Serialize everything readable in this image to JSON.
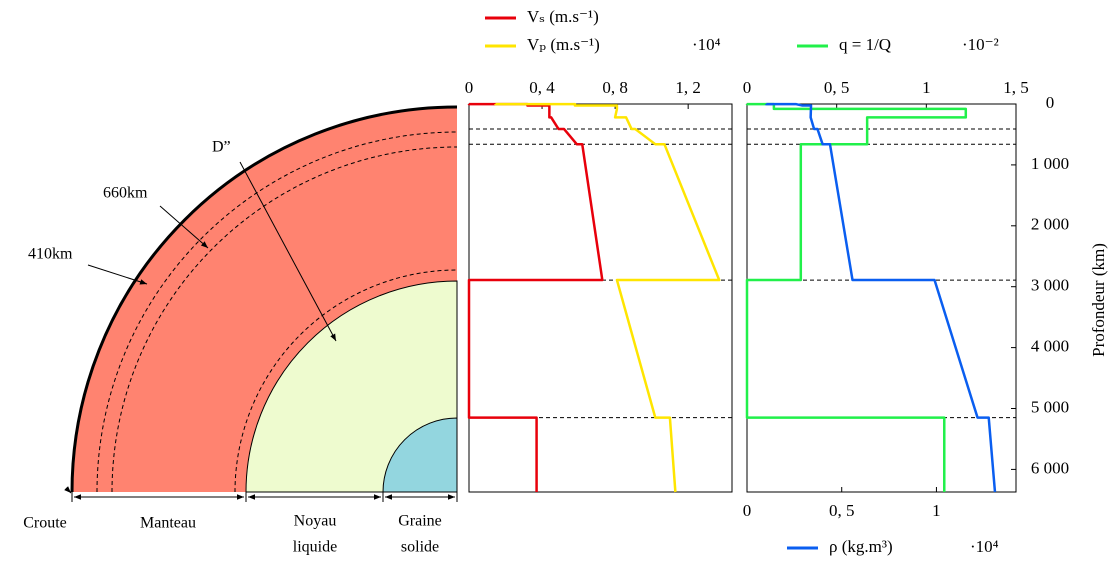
{
  "diagram": {
    "labels": {
      "d2": "D”",
      "d660": "660km",
      "d410": "410km",
      "crust": "Croute",
      "mantle": "Manteau",
      "outer_core": [
        "Noyau",
        "liquide"
      ],
      "inner_core": [
        "Graine",
        "solide"
      ]
    }
  },
  "discontinuities": [
    410,
    660,
    2891,
    5150
  ],
  "chart_data": [
    {
      "type": "line",
      "xaxis": "top",
      "x_multiplier": "·10⁴",
      "xlim": [
        0,
        1.44
      ],
      "xticks": [
        0,
        {
          "value": 0.4,
          "label": "0, 4"
        },
        {
          "value": 0.8,
          "label": "0, 8"
        },
        {
          "value": 1.2,
          "label": "1, 2"
        }
      ],
      "ylim": [
        0,
        6371
      ],
      "series": [
        {
          "name": "Vₛ (m.s⁻¹)",
          "color": "#e8000b",
          "depths": [
            0,
            3,
            3,
            24,
            24,
            80,
            220,
            220,
            410,
            410,
            660,
            660,
            2891,
            2891,
            5150,
            5150,
            6371
          ],
          "values": [
            0,
            0,
            0.32,
            0.32,
            0.44,
            0.44,
            0.44,
            0.45,
            0.49,
            0.52,
            0.59,
            0.62,
            0.73,
            0,
            0,
            0.37,
            0.37
          ]
        },
        {
          "name": "Vₚ (m.s⁻¹)",
          "color": "#ffe500",
          "depths": [
            0,
            3,
            3,
            24,
            24,
            80,
            220,
            220,
            410,
            410,
            660,
            660,
            2891,
            2891,
            5150,
            5150,
            6371
          ],
          "values": [
            0.145,
            0.145,
            0.58,
            0.58,
            0.81,
            0.81,
            0.8,
            0.86,
            0.89,
            0.91,
            1.02,
            1.07,
            1.37,
            0.81,
            1.02,
            1.1,
            1.13
          ]
        }
      ]
    },
    {
      "type": "line",
      "xaxis": "bottom",
      "x2axis": "top",
      "yaxis": "right",
      "y_label": "Profondeur (km)",
      "x_multiplier": "·10⁴",
      "x2_multiplier": "·10⁻²",
      "xlim": [
        0,
        1.42
      ],
      "xticks": [
        0,
        {
          "value": 0.5,
          "label": "0, 5"
        },
        1
      ],
      "x2lim": [
        0,
        1.5
      ],
      "x2ticks": [
        0,
        {
          "value": 0.5,
          "label": "0, 5"
        },
        1,
        {
          "value": 1.5,
          "label": "1, 5"
        }
      ],
      "ylim": [
        0,
        6371
      ],
      "yticks": [
        0,
        {
          "value": 1000,
          "label": "1 000"
        },
        {
          "value": 2000,
          "label": "2 000"
        },
        {
          "value": 3000,
          "label": "3 000"
        },
        {
          "value": 4000,
          "label": "4 000"
        },
        {
          "value": 5000,
          "label": "5 000"
        },
        {
          "value": 6000,
          "label": "6 000"
        }
      ],
      "series": [
        {
          "name": "q = 1/Q",
          "color": "#21f04a",
          "axis": "x2",
          "depths": [
            0,
            3,
            3,
            80,
            80,
            220,
            220,
            660,
            660,
            2891,
            2891,
            5150,
            5150,
            6371
          ],
          "values": [
            0,
            0,
            0.15,
            0.15,
            1.22,
            1.22,
            0.67,
            0.67,
            0.3,
            0.3,
            0,
            0,
            1.1,
            1.1
          ]
        },
        {
          "name": "ρ (kg.m³)",
          "color": "#0a5ef0",
          "depths": [
            0,
            3,
            3,
            24,
            24,
            220,
            410,
            410,
            660,
            660,
            2891,
            2891,
            5150,
            5150,
            6371
          ],
          "values": [
            0.102,
            0.102,
            0.26,
            0.29,
            0.338,
            0.336,
            0.354,
            0.372,
            0.399,
            0.438,
            0.557,
            0.99,
            1.217,
            1.276,
            1.309
          ]
        }
      ]
    }
  ]
}
